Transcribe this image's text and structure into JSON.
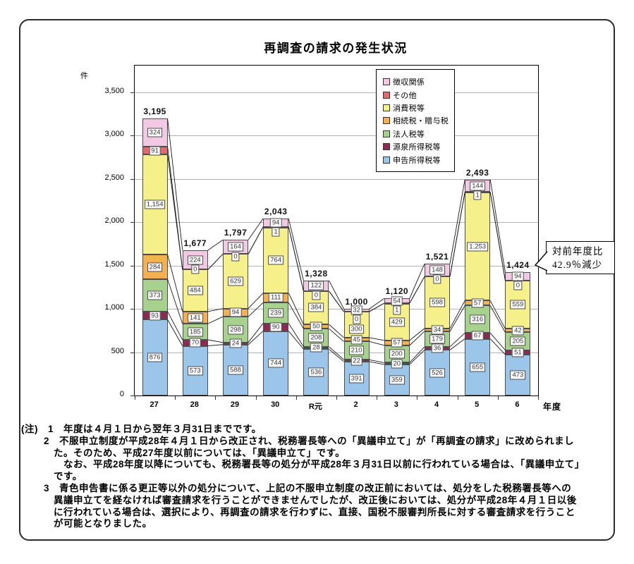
{
  "page": {
    "title": "再調査の請求の発生状況",
    "unit_label": "件",
    "x_axis_suffix": "年度"
  },
  "callout": {
    "line1": "対前年度比",
    "line2": "42.9％減少"
  },
  "chart_data": {
    "type": "bar",
    "subtype": "stacked-column",
    "title": "再調査の請求の発生状況",
    "unit": "件",
    "categories": [
      "27",
      "28",
      "29",
      "30",
      "R元",
      "2",
      "3",
      "4",
      "5",
      "6"
    ],
    "category_axis_label": "年度",
    "ylim": [
      0,
      3750
    ],
    "yticks": [
      0,
      500,
      1000,
      1500,
      2000,
      2500,
      3000,
      3500
    ],
    "ytick_labels": [
      "0",
      "500",
      "1,000",
      "1,500",
      "2,000",
      "2,500",
      "3,000",
      "3,500"
    ],
    "grid": true,
    "legend_position": "top-right-inside",
    "legend_order": "reverse-of-stack",
    "series_lines": true,
    "series": [
      {
        "name": "申告所得税等",
        "color": "#9CC5EA",
        "values": [
          876,
          573,
          588,
          744,
          536,
          391,
          359,
          526,
          655,
          473
        ]
      },
      {
        "name": "源泉所得税等",
        "color": "#8E2951",
        "values": [
          93,
          70,
          24,
          90,
          28,
          22,
          20,
          36,
          67,
          51
        ]
      },
      {
        "name": "法人税等",
        "color": "#A7D28D",
        "values": [
          373,
          185,
          298,
          239,
          208,
          210,
          200,
          179,
          316,
          205
        ]
      },
      {
        "name": "相続税・贈与税",
        "color": "#F5B04F",
        "values": [
          284,
          141,
          94,
          111,
          50,
          45,
          57,
          34,
          57,
          42
        ]
      },
      {
        "name": "消費税等",
        "color": "#F5F089",
        "values": [
          1154,
          484,
          629,
          764,
          384,
          300,
          429,
          598,
          1253,
          559
        ]
      },
      {
        "name": "その他",
        "color": "#E5696B",
        "values": [
          91,
          0,
          0,
          1,
          0,
          0,
          1,
          0,
          1,
          0
        ]
      },
      {
        "name": "徴収関係",
        "color": "#F1C9E3",
        "values": [
          324,
          224,
          164,
          94,
          122,
          32,
          54,
          148,
          144,
          94
        ]
      }
    ],
    "totals": [
      3195,
      1677,
      1797,
      2043,
      1328,
      1000,
      1120,
      1521,
      2493,
      1424
    ],
    "annotation": "対前年度比 42.9％減少 (6年度)"
  },
  "notes": {
    "lines": [
      {
        "indent": 0,
        "text": "(注)　1　年度は４月１日から翌年３月31日までです。"
      },
      {
        "indent": 32,
        "text": "2　不服申立制度が平成28年４月１日から改正され、税務署長等への「異議申立て」が「再調査の請求」に改められまし"
      },
      {
        "indent": 46,
        "text": "た。そのため、平成27年度以前については、「異議申立て」です。"
      },
      {
        "indent": 60,
        "text": "なお、平成28年度以降についても、税務署長等の処分が平成28年３月31日以前に行われている場合は、「異議申立て」"
      },
      {
        "indent": 46,
        "text": "です。"
      },
      {
        "indent": 32,
        "text": "3　青色申告書に係る更正等以外の処分について、上記の不服申立制度の改正前においては、処分をした税務署長等への"
      },
      {
        "indent": 46,
        "text": "異議申立てを経なければ審査請求を行うことができませんでしたが、改正後においては、処分が平成28年４月１日以後"
      },
      {
        "indent": 46,
        "text": "に行われている場合は、選択により、再調査の請求を行わずに、直接、国税不服審判所長に対する審査請求を行うこと"
      },
      {
        "indent": 46,
        "text": "が可能となりました。"
      }
    ]
  }
}
